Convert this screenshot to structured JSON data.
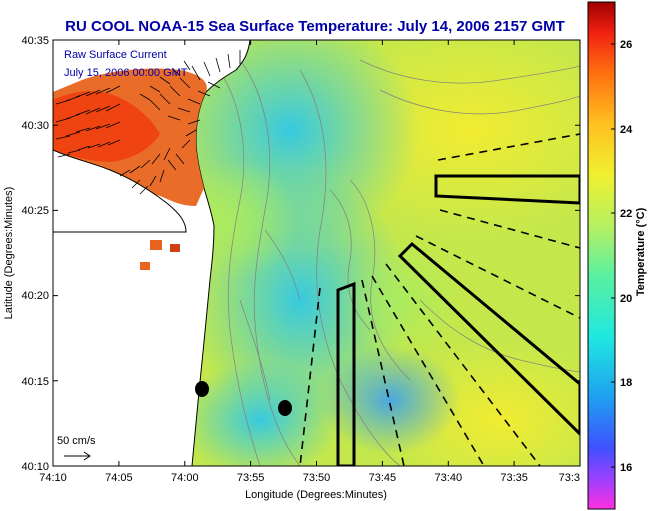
{
  "title": "RU COOL  NOAA-15  Sea Surface Temperature:  July 14, 2006 2157 GMT",
  "overlay": {
    "line1": "Raw Surface Current",
    "line2": "July 15, 2006 00:00 GMT"
  },
  "scale_bar": {
    "label": "50 cm/s"
  },
  "axes": {
    "xlabel": "Longitude (Degrees:Minutes)",
    "ylabel": "Latitude (Degrees:Minutes)",
    "xticks": [
      "74:10",
      "74:05",
      "74:00",
      "73:55",
      "73:50",
      "73:45",
      "73:40",
      "73:35",
      "73:3"
    ],
    "yticks": [
      "40:35",
      "40:30",
      "40:25",
      "40:20",
      "40:15",
      "40:10"
    ]
  },
  "colorbar": {
    "label": "Temperature (°C)",
    "ticks": [
      "26",
      "24",
      "22",
      "20",
      "18",
      "16"
    ],
    "range": [
      15,
      27
    ]
  },
  "colors": {
    "land": "#ffffff",
    "title": "#0000a8",
    "sst_warm": "#e85a10",
    "sst_mid": "#c8e84a",
    "sst_cool": "#40e0d0",
    "sst_cold": "#2a9ae8"
  },
  "chart_data": {
    "type": "heatmap",
    "title": "RU COOL  NOAA-15  Sea Surface Temperature:  July 14, 2006 2157 GMT",
    "xlabel": "Longitude (Degrees:Minutes)",
    "ylabel": "Latitude (Degrees:Minutes)",
    "xlim": [
      "74:10",
      "73:30"
    ],
    "ylim": [
      "40:10",
      "40:35"
    ],
    "colorbar_range_degC": [
      15,
      27
    ],
    "colorbar_label": "Temperature (°C)",
    "stations": [
      {
        "lon": "73:58.7",
        "lat": "40:14.7"
      },
      {
        "lon": "73:52.3",
        "lat": "40:13.6"
      }
    ]
  }
}
